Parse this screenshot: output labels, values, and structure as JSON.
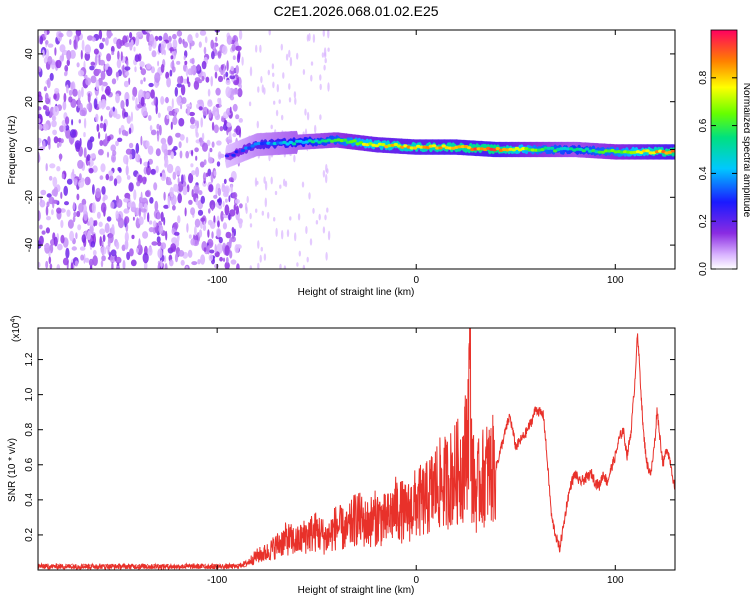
{
  "title": "C2E1.2026.068.01.02.E25",
  "chart_data": [
    {
      "type": "heatmap",
      "name": "spectrogram",
      "xlabel": "Height of straight line (km)",
      "ylabel": "Frequency (Hz)",
      "xlim": [
        -190,
        130
      ],
      "ylim": [
        -50,
        50
      ],
      "xticks": [
        -100,
        0,
        100
      ],
      "yticks": [
        -40,
        -20,
        0,
        20,
        40
      ],
      "colorbar": {
        "label": "Normalized spectral amplitude",
        "range": [
          0,
          1
        ],
        "ticks": [
          0.0,
          0.2,
          0.4,
          0.6,
          0.8
        ]
      },
      "ridge": {
        "description_points_x": [
          -95,
          -80,
          -60,
          -40,
          -20,
          0,
          20,
          40,
          60,
          80,
          100,
          130
        ],
        "description_points_y": [
          -3,
          2,
          3,
          4,
          2,
          1,
          1,
          0,
          0,
          0,
          -1,
          -1
        ],
        "amplitude": [
          0.2,
          0.35,
          0.45,
          0.55,
          0.75,
          0.8,
          0.85,
          0.9,
          0.6,
          0.5,
          0.6,
          0.9
        ]
      },
      "noise_extent_x": [
        -190,
        -88
      ]
    },
    {
      "type": "line",
      "name": "snr",
      "xlabel": "Height of straight line (km)",
      "ylabel": "SNR (10 * v/v)",
      "scale_label": "(x10",
      "scale_exp": "4",
      "xlim": [
        -190,
        130
      ],
      "ylim": [
        0,
        1.38
      ],
      "xticks": [
        -100,
        0,
        100
      ],
      "yticks": [
        0.2,
        0.4,
        0.6,
        0.8,
        1.0,
        1.2
      ],
      "color": "#e8312a",
      "series": [
        {
          "name": "SNR",
          "x": [
            -190,
            -150,
            -100,
            -90,
            -85,
            -80,
            -75,
            -70,
            -65,
            -60,
            -55,
            -50,
            -45,
            -40,
            -35,
            -30,
            -25,
            -20,
            -15,
            -10,
            -5,
            0,
            5,
            10,
            15,
            20,
            24,
            26,
            27,
            28,
            30,
            32,
            35,
            40,
            45,
            47,
            50,
            55,
            58,
            60,
            62,
            64,
            66,
            68,
            70,
            72,
            74,
            76,
            78,
            80,
            82,
            85,
            88,
            90,
            92,
            94,
            96,
            98,
            100,
            102,
            104,
            106,
            108,
            110,
            111,
            112,
            114,
            116,
            118,
            120,
            121,
            122,
            124,
            126,
            128,
            130
          ],
          "y": [
            0.02,
            0.02,
            0.02,
            0.02,
            0.04,
            0.08,
            0.1,
            0.14,
            0.18,
            0.16,
            0.2,
            0.22,
            0.18,
            0.25,
            0.22,
            0.3,
            0.26,
            0.3,
            0.28,
            0.35,
            0.32,
            0.38,
            0.4,
            0.48,
            0.5,
            0.55,
            0.6,
            0.8,
            1.22,
            0.55,
            0.45,
            0.5,
            0.55,
            0.58,
            0.8,
            0.88,
            0.7,
            0.78,
            0.85,
            0.92,
            0.9,
            0.88,
            0.6,
            0.3,
            0.2,
            0.12,
            0.25,
            0.4,
            0.5,
            0.55,
            0.5,
            0.52,
            0.55,
            0.5,
            0.48,
            0.55,
            0.5,
            0.58,
            0.65,
            0.75,
            0.8,
            0.65,
            0.8,
            1.1,
            1.35,
            1.2,
            0.8,
            0.6,
            0.55,
            0.75,
            0.92,
            0.8,
            0.6,
            0.7,
            0.6,
            0.45
          ]
        }
      ]
    }
  ]
}
